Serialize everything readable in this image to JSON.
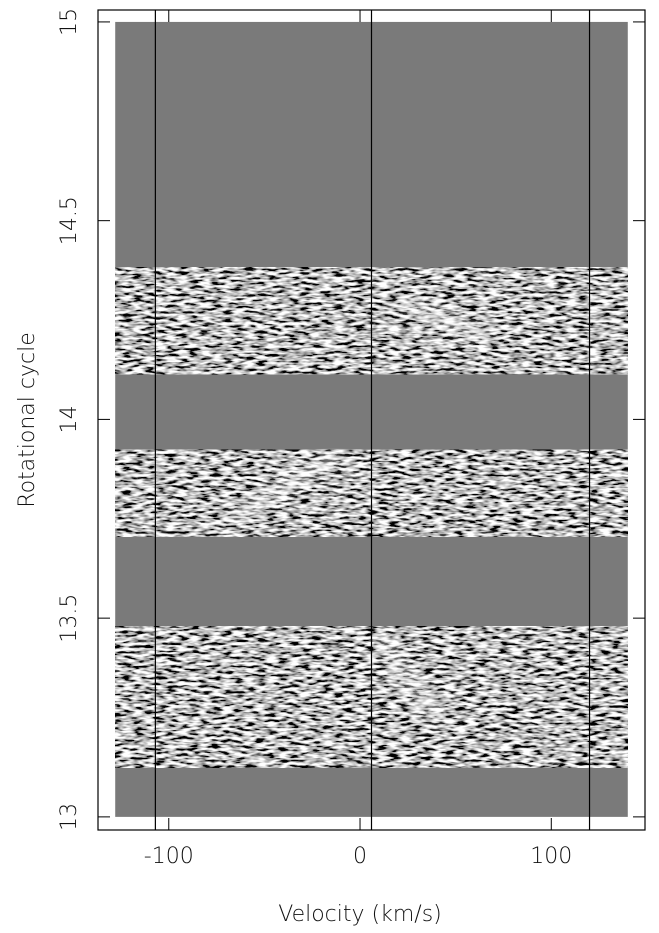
{
  "chart_data": {
    "type": "dynamic-spectrum",
    "xlabel": "Velocity (km/s)",
    "ylabel": "Rotational cycle",
    "xlim": [
      -137,
      149
    ],
    "ylim": [
      12.967,
      15.03
    ],
    "xticks": [
      -100,
      0,
      100
    ],
    "yticks": [
      13,
      13.5,
      14,
      14.5,
      15
    ],
    "coverage_x": [
      -128,
      140
    ],
    "coverage_y": [
      13,
      15
    ],
    "background_color": "#7a7a7a",
    "bands": [
      [
        13.123,
        13.479
      ],
      [
        13.705,
        13.924
      ],
      [
        14.113,
        14.383
      ]
    ],
    "streaks": [
      {
        "x": [
          10,
          42
        ],
        "y": [
          13.45,
          13.24
        ]
      },
      {
        "x": [
          -68,
          -10
        ],
        "y": [
          13.75,
          13.91
        ]
      },
      {
        "x": [
          21,
          68
        ],
        "y": [
          14.3,
          14.2
        ]
      }
    ],
    "reference_lines": [
      -107,
      6,
      120
    ]
  }
}
